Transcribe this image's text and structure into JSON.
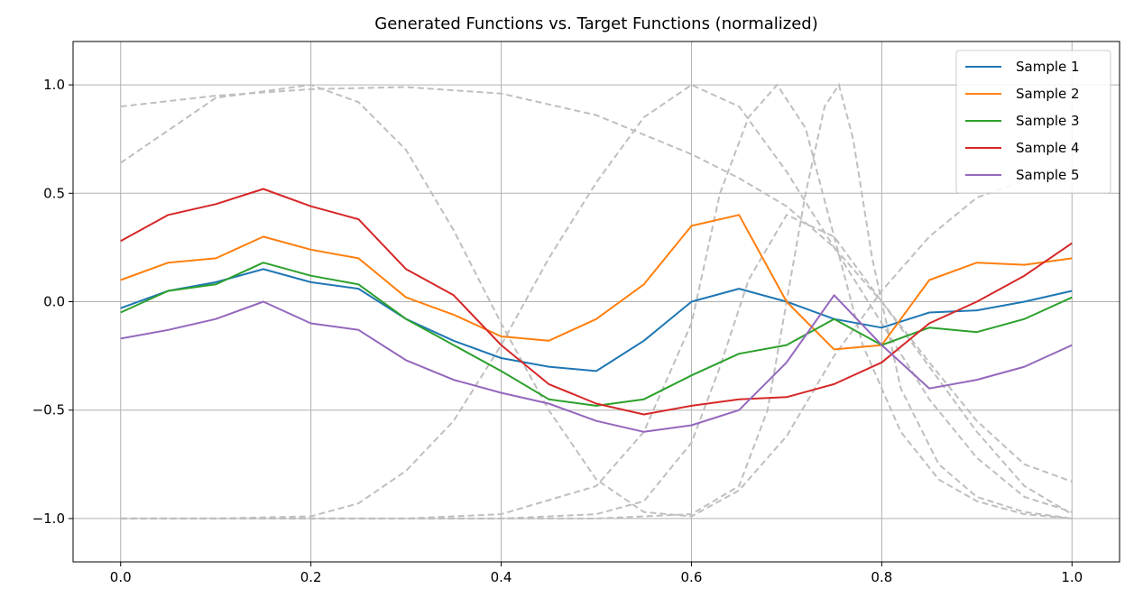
{
  "chart_data": {
    "type": "line",
    "title": "Generated Functions vs. Target Functions (normalized)",
    "xlabel": "",
    "ylabel": "",
    "xlim": [
      -0.05,
      1.05
    ],
    "ylim": [
      -1.2,
      1.2
    ],
    "x_ticks": [
      0.0,
      0.2,
      0.4,
      0.6,
      0.8,
      1.0
    ],
    "x_tick_labels": [
      "0.0",
      "0.2",
      "0.4",
      "0.6",
      "0.8",
      "1.0"
    ],
    "y_ticks": [
      -1.0,
      -0.5,
      0.0,
      0.5,
      1.0
    ],
    "y_tick_labels": [
      "−1.0",
      "−0.5",
      "0.0",
      "0.5",
      "1.0"
    ],
    "grid": true,
    "legend_position": "top-right",
    "x": [
      0.0,
      0.05,
      0.1,
      0.15,
      0.2,
      0.25,
      0.3,
      0.35,
      0.4,
      0.45,
      0.5,
      0.55,
      0.6,
      0.65,
      0.7,
      0.75,
      0.8,
      0.85,
      0.9,
      0.95,
      1.0
    ],
    "series": [
      {
        "name": "Sample 1",
        "color": "#1f77b4",
        "y": [
          -0.03,
          0.05,
          0.09,
          0.15,
          0.09,
          0.06,
          -0.08,
          -0.18,
          -0.26,
          -0.3,
          -0.32,
          -0.18,
          0.0,
          0.06,
          0.0,
          -0.08,
          -0.12,
          -0.05,
          -0.04,
          0.0,
          0.05
        ]
      },
      {
        "name": "Sample 2",
        "color": "#ff7f0e",
        "y": [
          0.1,
          0.18,
          0.2,
          0.3,
          0.24,
          0.2,
          0.02,
          -0.06,
          -0.16,
          -0.18,
          -0.08,
          0.08,
          0.35,
          0.4,
          0.0,
          -0.22,
          -0.2,
          0.1,
          0.18,
          0.17,
          0.2
        ]
      },
      {
        "name": "Sample 3",
        "color": "#2ca02c",
        "y": [
          -0.05,
          0.05,
          0.08,
          0.18,
          0.12,
          0.08,
          -0.08,
          -0.2,
          -0.32,
          -0.45,
          -0.48,
          -0.45,
          -0.34,
          -0.24,
          -0.2,
          -0.08,
          -0.2,
          -0.12,
          -0.14,
          -0.08,
          0.02
        ]
      },
      {
        "name": "Sample 4",
        "color": "#d62728",
        "y": [
          0.28,
          0.4,
          0.45,
          0.52,
          0.44,
          0.38,
          0.15,
          0.03,
          -0.2,
          -0.38,
          -0.47,
          -0.52,
          -0.48,
          -0.45,
          -0.44,
          -0.38,
          -0.28,
          -0.1,
          0.0,
          0.12,
          0.27
        ]
      },
      {
        "name": "Sample 5",
        "color": "#9467bd",
        "y": [
          -0.17,
          -0.13,
          -0.08,
          0.0,
          -0.1,
          -0.13,
          -0.27,
          -0.36,
          -0.42,
          -0.47,
          -0.55,
          -0.6,
          -0.57,
          -0.5,
          -0.28,
          0.03,
          -0.2,
          -0.4,
          -0.36,
          -0.3,
          -0.2
        ]
      }
    ],
    "targets": [
      {
        "x": [
          0.0,
          0.1,
          0.2,
          0.25,
          0.3,
          0.35,
          0.4,
          0.45,
          0.5,
          0.55,
          0.6,
          0.65,
          0.7,
          0.75,
          0.8,
          0.85,
          0.9,
          0.95,
          1.0
        ],
        "y": [
          0.64,
          0.94,
          1.0,
          0.92,
          0.7,
          0.33,
          -0.1,
          -0.5,
          -0.82,
          -0.97,
          -0.99,
          -0.87,
          -0.62,
          -0.25,
          0.05,
          0.3,
          0.48,
          0.56,
          0.6
        ]
      },
      {
        "x": [
          0.0,
          0.1,
          0.2,
          0.3,
          0.4,
          0.5,
          0.6,
          0.65,
          0.7,
          0.75,
          0.8,
          0.85,
          0.9,
          0.95,
          1.0
        ],
        "y": [
          0.9,
          0.95,
          0.98,
          0.99,
          0.96,
          0.86,
          0.68,
          0.57,
          0.44,
          0.25,
          0.0,
          -0.28,
          -0.55,
          -0.75,
          -0.83
        ]
      },
      {
        "x": [
          0.0,
          0.1,
          0.2,
          0.25,
          0.3,
          0.35,
          0.4,
          0.45,
          0.5,
          0.55,
          0.6,
          0.65,
          0.7,
          0.75,
          0.8,
          0.85,
          0.9,
          0.95,
          1.0
        ],
        "y": [
          -1.0,
          -1.0,
          -0.99,
          -0.93,
          -0.78,
          -0.55,
          -0.2,
          0.2,
          0.55,
          0.85,
          1.0,
          0.9,
          0.6,
          0.25,
          -0.1,
          -0.45,
          -0.72,
          -0.9,
          -0.97
        ]
      },
      {
        "x": [
          0.0,
          0.1,
          0.2,
          0.3,
          0.4,
          0.5,
          0.55,
          0.6,
          0.63,
          0.66,
          0.69,
          0.72,
          0.75,
          0.78,
          0.82,
          0.86,
          0.9,
          0.95,
          1.0
        ],
        "y": [
          -1.0,
          -1.0,
          -1.0,
          -1.0,
          -0.98,
          -0.85,
          -0.6,
          -0.1,
          0.5,
          0.85,
          1.0,
          0.8,
          0.3,
          -0.2,
          -0.6,
          -0.82,
          -0.92,
          -0.98,
          -1.0
        ]
      },
      {
        "x": [
          0.0,
          0.2,
          0.4,
          0.5,
          0.6,
          0.65,
          0.68,
          0.7,
          0.72,
          0.74,
          0.755,
          0.77,
          0.79,
          0.82,
          0.86,
          0.9,
          0.95,
          1.0
        ],
        "y": [
          -1.0,
          -1.0,
          -1.0,
          -1.0,
          -0.98,
          -0.85,
          -0.5,
          0.0,
          0.5,
          0.9,
          1.0,
          0.75,
          0.2,
          -0.4,
          -0.75,
          -0.9,
          -0.97,
          -1.0
        ]
      },
      {
        "x": [
          0.0,
          0.1,
          0.2,
          0.3,
          0.4,
          0.5,
          0.55,
          0.6,
          0.63,
          0.66,
          0.7,
          0.75,
          0.8,
          0.85,
          0.9,
          0.95,
          1.0
        ],
        "y": [
          -1.0,
          -1.0,
          -1.0,
          -1.0,
          -1.0,
          -0.98,
          -0.92,
          -0.65,
          -0.3,
          0.1,
          0.4,
          0.3,
          0.0,
          -0.3,
          -0.6,
          -0.85,
          -0.98
        ]
      }
    ],
    "target_style": {
      "color": "#bfbfbf",
      "dashed": true
    }
  }
}
